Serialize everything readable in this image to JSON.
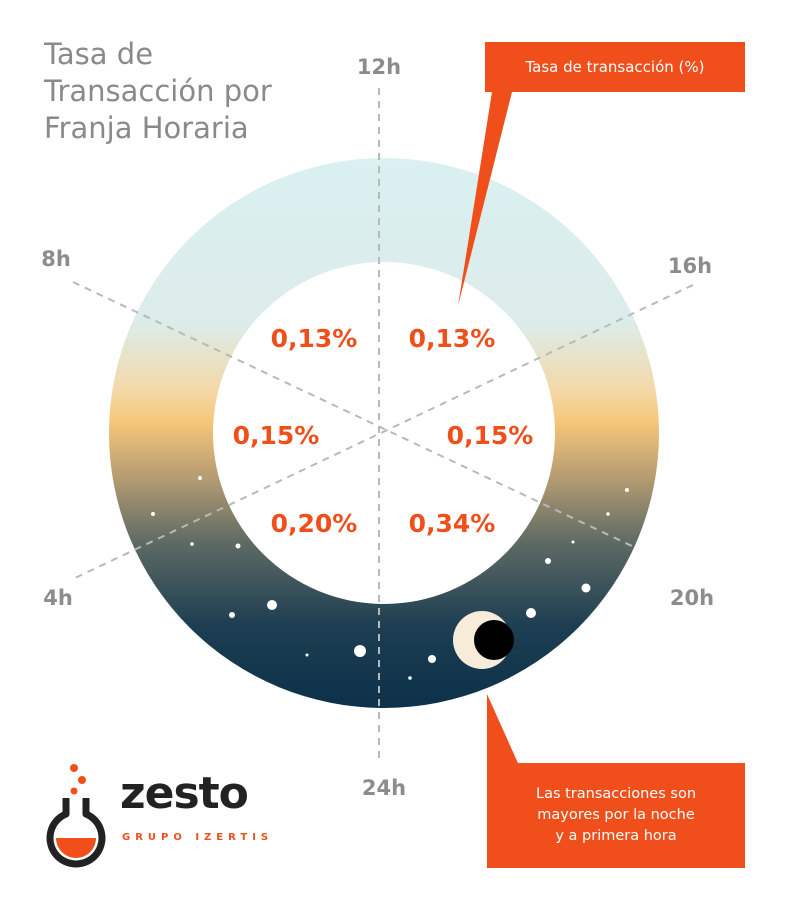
{
  "title": [
    "Tasa de",
    "Transacción por",
    "Franja Horaria"
  ],
  "colors": {
    "accent": "#f04e1a",
    "axis_label": "#8a8a8a",
    "ring_day": "#d9eef0",
    "ring_dawn": "#f6c67a",
    "ring_night": "#0c3149",
    "moon": "#f7ecd9"
  },
  "chart_data": {
    "type": "radial-time",
    "title": "Tasa de Transacción por Franja Horaria",
    "hour_labels": [
      "12h",
      "16h",
      "20h",
      "24h",
      "4h",
      "8h"
    ],
    "series": [
      {
        "name": "Tasa de transacción (%)",
        "unit": "%"
      }
    ],
    "segments": [
      {
        "from": "12h",
        "to": "16h",
        "value": 0.13,
        "label": "0,13%"
      },
      {
        "from": "16h",
        "to": "20h",
        "value": 0.15,
        "label": "0,15%"
      },
      {
        "from": "20h",
        "to": "24h",
        "value": 0.34,
        "label": "0,34%"
      },
      {
        "from": "24h",
        "to": "4h",
        "value": 0.2,
        "label": "0,20%"
      },
      {
        "from": "4h",
        "to": "8h",
        "value": 0.15,
        "label": "0,15%"
      },
      {
        "from": "8h",
        "to": "12h",
        "value": 0.13,
        "label": "0,13%"
      }
    ],
    "annotations": [
      "Tasa de transacción (%)",
      "Las transacciones son mayores por la noche y a primera hora"
    ]
  },
  "callouts": {
    "legend": "Tasa de transacción (%)",
    "note": [
      "Las transacciones son",
      "mayores por la noche",
      "y a primera hora"
    ]
  },
  "logo": {
    "word": "zesto",
    "subtitle": "GRUPO IZERTIS"
  }
}
